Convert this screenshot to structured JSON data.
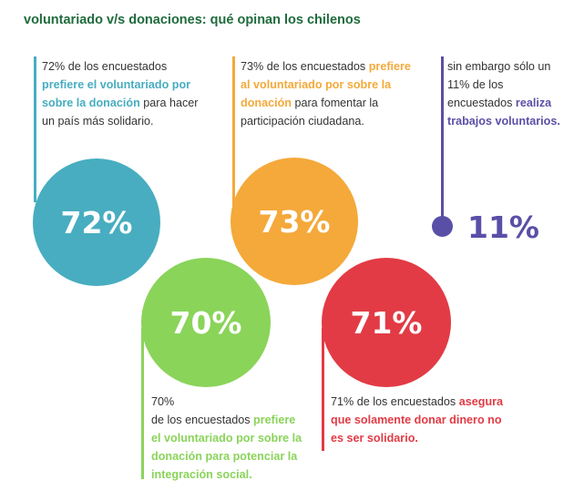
{
  "title": "voluntariado v/s donaciones: qué opinan los chilenos",
  "colors": {
    "teal": "#48adc0",
    "orange": "#f4a93a",
    "purple": "#5a4fa7",
    "green": "#8ad45a",
    "red": "#e23b45",
    "title_green": "#1f6b3c"
  },
  "stats": {
    "teal": {
      "value": "72%",
      "text_pre": "72% de los encuestados",
      "text_hl": "prefiere el voluntariado por sobre la donación",
      "text_post": "para hacer un país más solidario."
    },
    "orange": {
      "value": "73%",
      "text_pre": "73% de los encuestados",
      "text_hl": "prefiere al voluntariado por sobre la donación",
      "text_post": "para fomentar la participación ciudadana."
    },
    "purple": {
      "value": "11%",
      "text_pre": "sin embargo sólo un 11% de los encuestados",
      "text_hl": "realiza trabajos voluntarios."
    },
    "green": {
      "value": "70%",
      "text_pre_line1": "70%",
      "text_pre_line2": "de los encuestados",
      "text_hl": "prefiere el voluntariado por sobre la donación para potenciar la integración social."
    },
    "red": {
      "value": "71%",
      "text_pre": "71% de los encuestados",
      "text_hl": "asegura que solamente donar dinero no es ser solidario."
    }
  }
}
